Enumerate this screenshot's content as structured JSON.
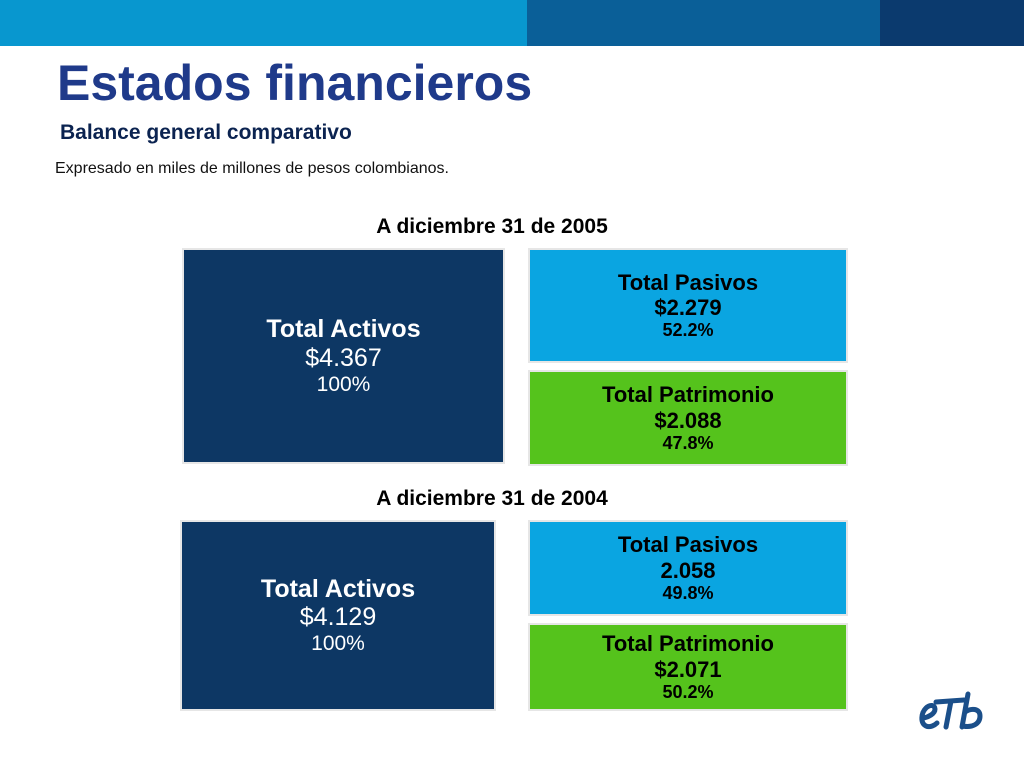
{
  "colors": {
    "bar_1": "#0897cf",
    "bar_2": "#0a5f98",
    "bar_3": "#0b3a6e",
    "assets_bg": "#0d3764",
    "liabilities_bg": "#0aa5e1",
    "equity_bg": "#55c31c",
    "logo": "#1b4f8a"
  },
  "header": {
    "title": "Estados financieros",
    "subtitle": "Balance general comparativo",
    "note": "Expresado en miles de millones de pesos colombianos."
  },
  "chart_data": [
    {
      "type": "table",
      "period": "A diciembre 31 de 2005",
      "total_activos": {
        "label": "Total Activos",
        "value": "$4.367",
        "percent": "100%"
      },
      "total_pasivos": {
        "label": "Total Pasivos",
        "value": "$2.279",
        "percent": "52.2%"
      },
      "total_patrimonio": {
        "label": "Total Patrimonio",
        "value": "$2.088",
        "percent": "47.8%"
      }
    },
    {
      "type": "table",
      "period": "A diciembre 31 de 2004",
      "total_activos": {
        "label": "Total Activos",
        "value": "$4.129",
        "percent": "100%"
      },
      "total_pasivos": {
        "label": "Total Pasivos",
        "value": "2.058",
        "percent": "49.8%"
      },
      "total_patrimonio": {
        "label": "Total Patrimonio",
        "value": "$2.071",
        "percent": "50.2%"
      }
    }
  ],
  "logo": {
    "text": "eTb",
    "icon": "etb-logo-icon"
  }
}
